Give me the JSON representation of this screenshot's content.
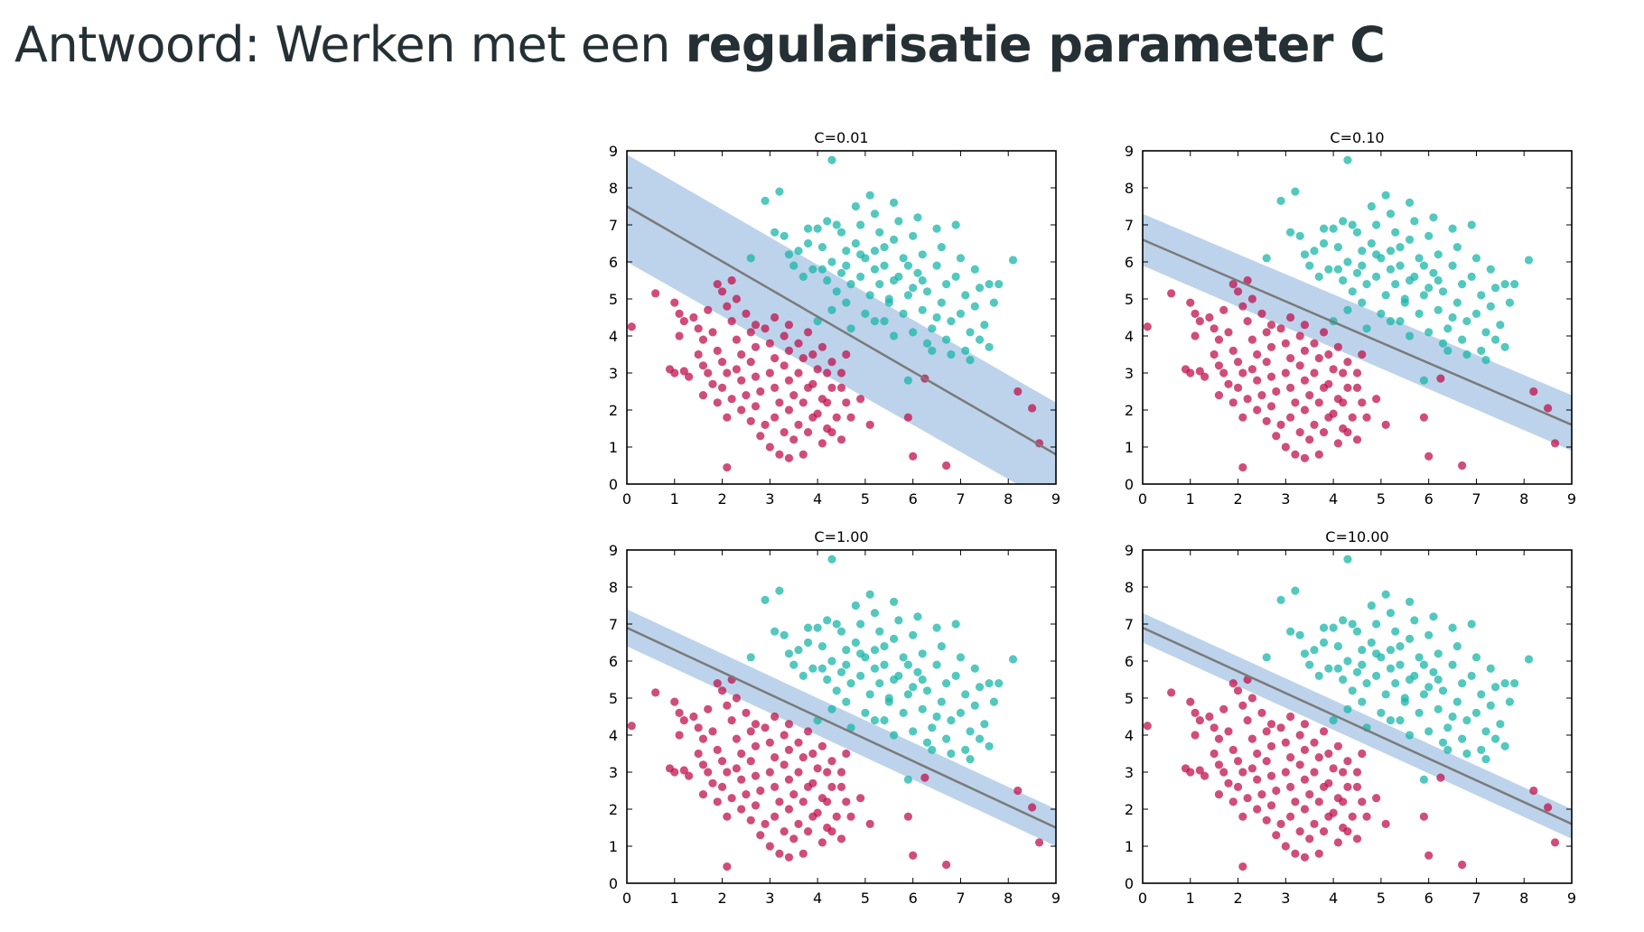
{
  "title": {
    "prefix": "Antwoord: Werken met een ",
    "emphasis": "regularisatie parameter C"
  },
  "colors": {
    "class_a": "#C0124E",
    "class_b": "#1AB5AA",
    "margin_band": "#B2CBE8",
    "decision_line": "#7A7A7A",
    "title_text": "#253035"
  },
  "chart_data": [
    {
      "type": "scatter",
      "title": "C=0.01",
      "xlim": [
        0,
        9
      ],
      "ylim": [
        0,
        9
      ],
      "xticks": [
        0,
        1,
        2,
        3,
        4,
        5,
        6,
        7,
        8,
        9
      ],
      "yticks": [
        0,
        1,
        2,
        3,
        4,
        5,
        6,
        7,
        8,
        9
      ],
      "decision_line": {
        "x": [
          0,
          9
        ],
        "y": [
          7.5,
          0.8
        ]
      },
      "margin_band": {
        "upper": [
          8.9,
          2.2
        ],
        "lower": [
          6.0,
          -0.6
        ]
      }
    },
    {
      "type": "scatter",
      "title": "C=0.10",
      "xlim": [
        0,
        9
      ],
      "ylim": [
        0,
        9
      ],
      "xticks": [
        0,
        1,
        2,
        3,
        4,
        5,
        6,
        7,
        8,
        9
      ],
      "yticks": [
        0,
        1,
        2,
        3,
        4,
        5,
        6,
        7,
        8,
        9
      ],
      "decision_line": {
        "x": [
          0,
          9
        ],
        "y": [
          6.6,
          1.6
        ]
      },
      "margin_band": {
        "upper": [
          7.3,
          2.4
        ],
        "lower": [
          5.9,
          0.9
        ]
      }
    },
    {
      "type": "scatter",
      "title": "C=1.00",
      "xlim": [
        0,
        9
      ],
      "ylim": [
        0,
        9
      ],
      "xticks": [
        0,
        1,
        2,
        3,
        4,
        5,
        6,
        7,
        8,
        9
      ],
      "yticks": [
        0,
        1,
        2,
        3,
        4,
        5,
        6,
        7,
        8,
        9
      ],
      "decision_line": {
        "x": [
          0,
          9
        ],
        "y": [
          6.9,
          1.5
        ]
      },
      "margin_band": {
        "upper": [
          7.4,
          2.0
        ],
        "lower": [
          6.4,
          1.0
        ]
      }
    },
    {
      "type": "scatter",
      "title": "C=10.00",
      "xlim": [
        0,
        9
      ],
      "ylim": [
        0,
        9
      ],
      "xticks": [
        0,
        1,
        2,
        3,
        4,
        5,
        6,
        7,
        8,
        9
      ],
      "yticks": [
        0,
        1,
        2,
        3,
        4,
        5,
        6,
        7,
        8,
        9
      ],
      "decision_line": {
        "x": [
          0,
          9
        ],
        "y": [
          6.9,
          1.6
        ]
      },
      "margin_band": {
        "upper": [
          7.3,
          2.0
        ],
        "lower": [
          6.5,
          1.2
        ]
      }
    }
  ],
  "scatter_points": {
    "class_a": [
      [
        0.1,
        4.25
      ],
      [
        0.6,
        5.15
      ],
      [
        1.0,
        4.9
      ],
      [
        1.1,
        4.6
      ],
      [
        1.2,
        4.4
      ],
      [
        1.1,
        4.0
      ],
      [
        0.9,
        3.1
      ],
      [
        1.0,
        3.0
      ],
      [
        1.2,
        3.05
      ],
      [
        1.3,
        2.9
      ],
      [
        1.4,
        4.5
      ],
      [
        1.5,
        4.2
      ],
      [
        1.6,
        3.9
      ],
      [
        1.5,
        3.5
      ],
      [
        1.6,
        3.2
      ],
      [
        1.7,
        3.0
      ],
      [
        1.8,
        2.7
      ],
      [
        1.6,
        2.4
      ],
      [
        1.9,
        2.2
      ],
      [
        1.7,
        4.7
      ],
      [
        1.8,
        4.1
      ],
      [
        1.9,
        3.6
      ],
      [
        2.0,
        3.3
      ],
      [
        2.1,
        3.0
      ],
      [
        2.0,
        2.6
      ],
      [
        2.2,
        2.3
      ],
      [
        2.1,
        1.8
      ],
      [
        2.0,
        5.2
      ],
      [
        2.1,
        4.8
      ],
      [
        2.2,
        4.4
      ],
      [
        2.3,
        3.9
      ],
      [
        2.4,
        3.5
      ],
      [
        2.3,
        3.1
      ],
      [
        2.4,
        2.8
      ],
      [
        2.5,
        2.4
      ],
      [
        2.4,
        2.0
      ],
      [
        2.6,
        1.7
      ],
      [
        2.3,
        5.0
      ],
      [
        2.5,
        4.6
      ],
      [
        2.6,
        4.1
      ],
      [
        2.7,
        3.7
      ],
      [
        2.6,
        3.3
      ],
      [
        2.7,
        2.9
      ],
      [
        2.8,
        2.5
      ],
      [
        2.7,
        2.1
      ],
      [
        2.9,
        1.6
      ],
      [
        2.8,
        1.3
      ],
      [
        3.0,
        1.0
      ],
      [
        2.9,
        4.2
      ],
      [
        3.0,
        3.8
      ],
      [
        3.1,
        3.4
      ],
      [
        3.0,
        3.0
      ],
      [
        3.1,
        2.6
      ],
      [
        3.2,
        2.2
      ],
      [
        3.1,
        1.8
      ],
      [
        3.3,
        1.4
      ],
      [
        3.2,
        0.8
      ],
      [
        3.3,
        4.0
      ],
      [
        3.4,
        3.6
      ],
      [
        3.3,
        3.2
      ],
      [
        3.4,
        2.8
      ],
      [
        3.5,
        2.4
      ],
      [
        3.4,
        2.0
      ],
      [
        3.6,
        1.6
      ],
      [
        3.5,
        1.2
      ],
      [
        3.4,
        0.7
      ],
      [
        3.6,
        3.8
      ],
      [
        3.7,
        3.4
      ],
      [
        3.6,
        3.0
      ],
      [
        3.8,
        2.6
      ],
      [
        3.7,
        2.2
      ],
      [
        3.9,
        1.8
      ],
      [
        3.8,
        1.4
      ],
      [
        3.7,
        0.8
      ],
      [
        3.9,
        3.5
      ],
      [
        4.0,
        3.1
      ],
      [
        3.9,
        2.7
      ],
      [
        4.1,
        2.3
      ],
      [
        4.0,
        1.9
      ],
      [
        4.2,
        1.5
      ],
      [
        4.1,
        1.1
      ],
      [
        4.2,
        3.0
      ],
      [
        4.3,
        2.6
      ],
      [
        4.2,
        2.2
      ],
      [
        4.4,
        1.8
      ],
      [
        4.3,
        1.4
      ],
      [
        4.5,
        1.2
      ],
      [
        4.5,
        2.6
      ],
      [
        4.6,
        2.2
      ],
      [
        4.7,
        1.8
      ],
      [
        4.9,
        2.3
      ],
      [
        5.1,
        1.6
      ],
      [
        2.1,
        0.45
      ],
      [
        6.0,
        0.75
      ],
      [
        6.7,
        0.5
      ],
      [
        5.9,
        1.8
      ],
      [
        8.2,
        2.5
      ],
      [
        8.5,
        2.05
      ],
      [
        8.65,
        1.1
      ],
      [
        6.25,
        2.85
      ],
      [
        4.5,
        3.0
      ],
      [
        4.3,
        3.3
      ],
      [
        4.6,
        3.5
      ],
      [
        4.1,
        3.7
      ],
      [
        3.8,
        4.1
      ],
      [
        3.4,
        4.3
      ],
      [
        3.1,
        4.5
      ],
      [
        2.7,
        4.3
      ],
      [
        2.2,
        5.5
      ],
      [
        1.9,
        5.4
      ]
    ],
    "class_b": [
      [
        4.3,
        8.75
      ],
      [
        3.2,
        7.9
      ],
      [
        2.9,
        7.65
      ],
      [
        3.1,
        6.8
      ],
      [
        3.3,
        6.7
      ],
      [
        2.6,
        6.1
      ],
      [
        3.4,
        6.2
      ],
      [
        3.6,
        6.3
      ],
      [
        3.8,
        6.5
      ],
      [
        3.5,
        5.9
      ],
      [
        3.7,
        5.6
      ],
      [
        3.9,
        5.8
      ],
      [
        4.0,
        6.9
      ],
      [
        4.2,
        7.1
      ],
      [
        4.1,
        6.4
      ],
      [
        4.3,
        6.0
      ],
      [
        4.2,
        5.5
      ],
      [
        4.4,
        5.2
      ],
      [
        4.5,
        6.8
      ],
      [
        4.6,
        6.3
      ],
      [
        4.5,
        5.7
      ],
      [
        4.7,
        5.4
      ],
      [
        4.6,
        4.9
      ],
      [
        4.8,
        7.5
      ],
      [
        4.9,
        7.0
      ],
      [
        4.8,
        6.5
      ],
      [
        5.0,
        6.1
      ],
      [
        4.9,
        5.6
      ],
      [
        5.1,
        5.1
      ],
      [
        5.0,
        4.6
      ],
      [
        5.1,
        7.8
      ],
      [
        5.2,
        7.3
      ],
      [
        5.3,
        6.8
      ],
      [
        5.2,
        6.3
      ],
      [
        5.4,
        5.9
      ],
      [
        5.3,
        5.4
      ],
      [
        5.5,
        4.9
      ],
      [
        5.4,
        4.4
      ],
      [
        5.6,
        7.6
      ],
      [
        5.7,
        7.1
      ],
      [
        5.6,
        6.6
      ],
      [
        5.8,
        6.1
      ],
      [
        5.7,
        5.6
      ],
      [
        5.9,
        5.1
      ],
      [
        5.8,
        4.6
      ],
      [
        6.0,
        4.1
      ],
      [
        6.1,
        7.2
      ],
      [
        6.0,
        6.7
      ],
      [
        6.2,
        6.2
      ],
      [
        6.1,
        5.7
      ],
      [
        6.3,
        5.2
      ],
      [
        6.2,
        4.7
      ],
      [
        6.4,
        4.2
      ],
      [
        6.3,
        3.8
      ],
      [
        6.5,
        6.9
      ],
      [
        6.6,
        6.4
      ],
      [
        6.5,
        5.9
      ],
      [
        6.7,
        5.4
      ],
      [
        6.6,
        4.9
      ],
      [
        6.8,
        4.4
      ],
      [
        6.7,
        3.9
      ],
      [
        6.9,
        7.0
      ],
      [
        7.0,
        6.1
      ],
      [
        6.9,
        5.6
      ],
      [
        7.1,
        5.1
      ],
      [
        7.0,
        4.6
      ],
      [
        7.2,
        4.1
      ],
      [
        7.1,
        3.6
      ],
      [
        7.3,
        5.8
      ],
      [
        7.4,
        5.3
      ],
      [
        7.3,
        4.8
      ],
      [
        7.5,
        4.3
      ],
      [
        7.4,
        3.9
      ],
      [
        7.6,
        5.4
      ],
      [
        7.7,
        4.9
      ],
      [
        7.8,
        5.4
      ],
      [
        8.1,
        6.05
      ],
      [
        7.2,
        3.35
      ],
      [
        5.9,
        2.8
      ],
      [
        7.6,
        3.7
      ],
      [
        4.0,
        4.4
      ],
      [
        4.3,
        4.7
      ],
      [
        4.7,
        4.2
      ],
      [
        5.2,
        4.4
      ],
      [
        5.6,
        4.0
      ],
      [
        6.4,
        3.6
      ],
      [
        6.8,
        3.5
      ],
      [
        5.5,
        5.0
      ],
      [
        5.2,
        5.8
      ],
      [
        5.9,
        5.9
      ],
      [
        4.4,
        7.0
      ],
      [
        4.9,
        6.2
      ],
      [
        5.4,
        6.4
      ],
      [
        6.2,
        5.5
      ],
      [
        6.5,
        4.5
      ],
      [
        4.6,
        5.9
      ],
      [
        5.6,
        5.5
      ],
      [
        6.0,
        5.3
      ],
      [
        4.1,
        5.8
      ],
      [
        3.8,
        6.9
      ]
    ]
  }
}
